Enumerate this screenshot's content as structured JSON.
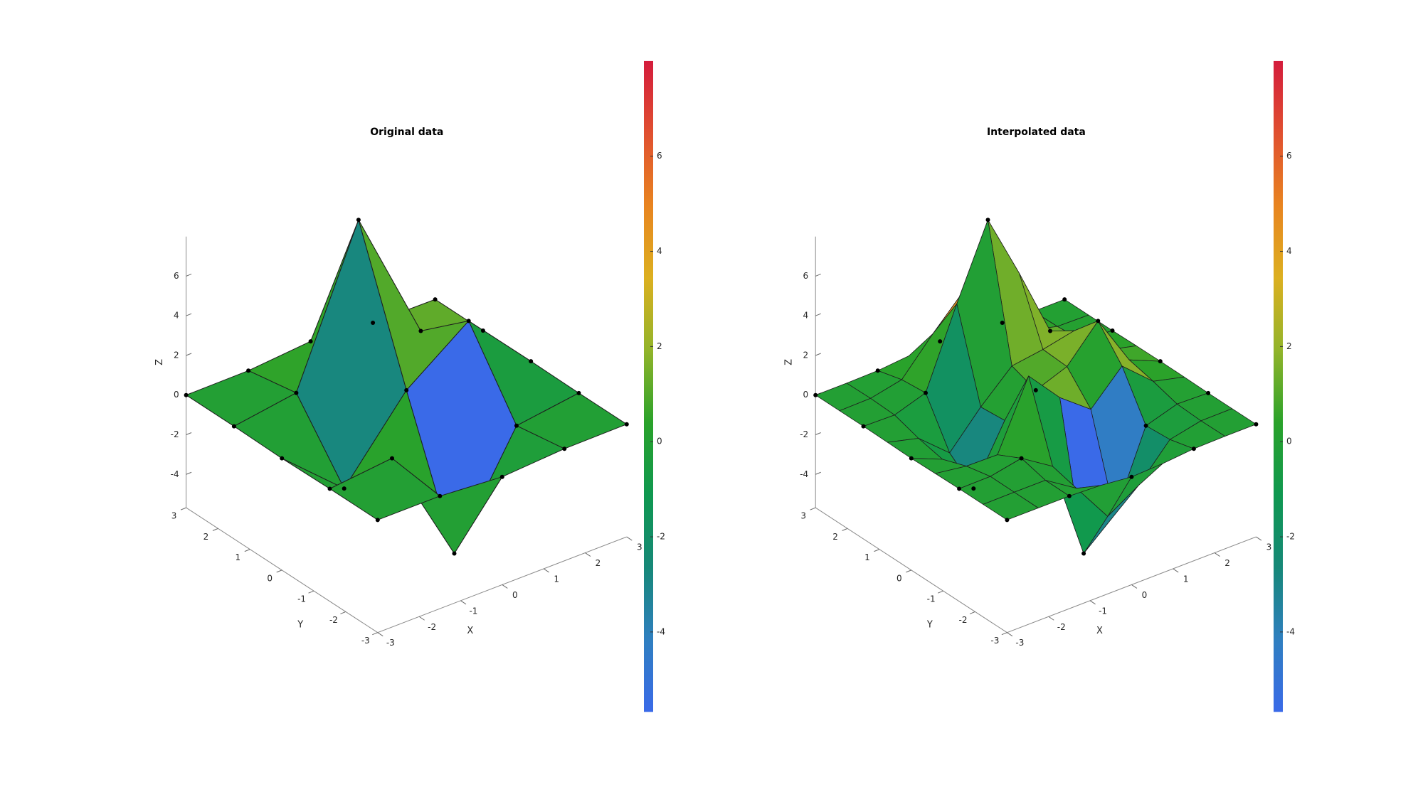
{
  "chart_data": [
    {
      "type": "surface",
      "title": "Original data",
      "xlabel": "X",
      "ylabel": "Y",
      "zlabel": "Z",
      "x": [
        -3,
        -1.5,
        0,
        1.5,
        3
      ],
      "y": [
        -3,
        -1.5,
        0,
        1.5,
        3
      ],
      "z": [
        [
          0,
          0,
          -0.24,
          -0.03,
          0
        ],
        [
          0,
          0.33,
          -5.68,
          -0.44,
          0
        ],
        [
          -0.04,
          -2.77,
          0.98,
          3.27,
          0.03
        ],
        [
          0,
          0.48,
          8.0,
          1.19,
          0
        ],
        [
          0,
          0.03,
          0.3,
          0.03,
          0
        ]
      ],
      "xlim": [
        -3,
        3
      ],
      "ylim": [
        -3,
        3
      ],
      "zlim": [
        -5.68,
        8
      ],
      "xticks": [
        -3,
        -2,
        -1,
        0,
        1,
        2,
        3
      ],
      "yticks": [
        -3,
        -2,
        -1,
        0,
        1,
        2,
        3
      ],
      "zticks": [
        -4,
        -2,
        0,
        2,
        4,
        6
      ],
      "clim": [
        -5.68,
        8
      ],
      "cticks": [
        -4,
        -2,
        0,
        2,
        4,
        6
      ],
      "colormap": [
        "#3a6ae8",
        "#2f7fc0",
        "#168878",
        "#0f9850",
        "#2aa22a",
        "#92b42a",
        "#dcb020",
        "#e88420",
        "#e05030",
        "#d41c3c"
      ],
      "edge_color": "#1e1e1e",
      "markers": true,
      "sample_points": false,
      "marker_color": "#000000"
    },
    {
      "type": "surface",
      "title": "Interpolated data",
      "xlabel": "X",
      "ylabel": "Y",
      "zlabel": "Z",
      "x": [
        -3,
        -2.25,
        -1.5,
        -0.75,
        0,
        0.75,
        1.5,
        2.25,
        3
      ],
      "y": [
        -3,
        -2.25,
        -1.5,
        -0.75,
        0,
        0.75,
        1.5,
        2.25,
        3
      ],
      "z": [
        [
          0,
          0,
          0,
          -0.07,
          -0.24,
          -0.17,
          -0.03,
          0,
          0
        ],
        [
          0,
          0.01,
          0.01,
          -1.0,
          -3.02,
          -2.05,
          -0.35,
          -0.01,
          0
        ],
        [
          0,
          0.02,
          0.33,
          -0.68,
          -5.68,
          -4.32,
          -0.44,
          0.05,
          0
        ],
        [
          -0.02,
          -0.25,
          -0.28,
          3.09,
          1.4,
          0.2,
          1.78,
          0.41,
          0.02
        ],
        [
          -0.04,
          -0.69,
          -2.77,
          0.06,
          0.98,
          1.57,
          3.27,
          0.7,
          0.03
        ],
        [
          -0.02,
          -0.42,
          -1.76,
          -0.05,
          1.42,
          1.65,
          1.99,
          0.4,
          0.02
        ],
        [
          0,
          -0.03,
          0.48,
          4.37,
          8.0,
          4.72,
          1.19,
          0.12,
          0
        ],
        [
          0,
          0.02,
          0.36,
          2.07,
          3.65,
          2.09,
          0.41,
          0.03,
          0
        ],
        [
          0,
          0,
          0.03,
          0.17,
          0.3,
          0.17,
          0.03,
          0,
          0
        ]
      ],
      "xlim": [
        -3,
        3
      ],
      "ylim": [
        -3,
        3
      ],
      "zlim": [
        -5.68,
        8
      ],
      "xticks": [
        -3,
        -2,
        -1,
        0,
        1,
        2,
        3
      ],
      "yticks": [
        -3,
        -2,
        -1,
        0,
        1,
        2,
        3
      ],
      "zticks": [
        -4,
        -2,
        0,
        2,
        4,
        6
      ],
      "clim": [
        -5.68,
        8
      ],
      "cticks": [
        -4,
        -2,
        0,
        2,
        4,
        6
      ],
      "colormap": [
        "#3a6ae8",
        "#2f7fc0",
        "#168878",
        "#0f9850",
        "#2aa22a",
        "#92b42a",
        "#dcb020",
        "#e88420",
        "#e05030",
        "#d41c3c"
      ],
      "edge_color": "#1e1e1e",
      "markers": false,
      "sample_points": true,
      "marker_color": "#000000"
    }
  ]
}
